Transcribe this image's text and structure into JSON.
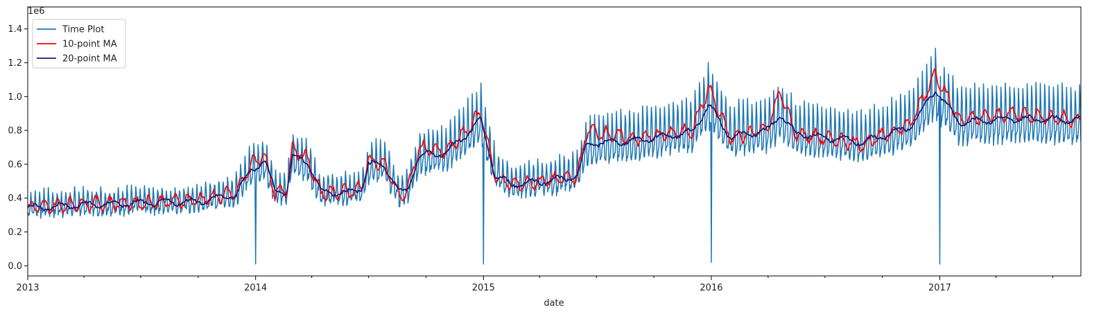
{
  "chart_data": {
    "type": "line",
    "title": "",
    "xlabel": "date",
    "ylabel": "",
    "y_offset_label": "1e6",
    "xlim": [
      "2013-01-01",
      "2017-08-15"
    ],
    "ylim": [
      -0.06,
      1.53
    ],
    "y_ticks": [
      0.0,
      0.2,
      0.4,
      0.6,
      0.8,
      1.0,
      1.2,
      1.4
    ],
    "x_ticks": [
      "2013",
      "2014",
      "2015",
      "2016",
      "2017"
    ],
    "grid": false,
    "legend_position": "top-left",
    "series": [
      {
        "name": "Time Plot",
        "color": "#1f77b4",
        "style": "daily sales with weekly spikes; near-zero dips on Jan 1 each year",
        "level": [
          [
            "2013-01-01",
            0.35
          ],
          [
            "2013-04-01",
            0.36
          ],
          [
            "2013-07-01",
            0.37
          ],
          [
            "2013-10-01",
            0.38
          ],
          [
            "2013-12-01",
            0.43
          ],
          [
            "2013-12-25",
            0.58
          ],
          [
            "2014-01-15",
            0.6
          ],
          [
            "2014-02-01",
            0.45
          ],
          [
            "2014-02-20",
            0.44
          ],
          [
            "2014-03-01",
            0.63
          ],
          [
            "2014-03-25",
            0.6
          ],
          [
            "2014-04-15",
            0.44
          ],
          [
            "2014-06-01",
            0.43
          ],
          [
            "2014-06-20",
            0.46
          ],
          [
            "2014-07-01",
            0.58
          ],
          [
            "2014-07-25",
            0.6
          ],
          [
            "2014-08-20",
            0.42
          ],
          [
            "2014-09-01",
            0.45
          ],
          [
            "2014-09-20",
            0.64
          ],
          [
            "2014-11-01",
            0.66
          ],
          [
            "2014-12-01",
            0.76
          ],
          [
            "2014-12-28",
            0.86
          ],
          [
            "2015-01-20",
            0.55
          ],
          [
            "2015-02-15",
            0.48
          ],
          [
            "2015-05-01",
            0.51
          ],
          [
            "2015-06-01",
            0.54
          ],
          [
            "2015-06-15",
            0.7
          ],
          [
            "2015-09-01",
            0.74
          ],
          [
            "2015-12-01",
            0.8
          ],
          [
            "2015-12-28",
            0.96
          ],
          [
            "2016-02-01",
            0.77
          ],
          [
            "2016-04-01",
            0.8
          ],
          [
            "2016-04-20",
            0.88
          ],
          [
            "2016-05-15",
            0.78
          ],
          [
            "2016-09-01",
            0.73
          ],
          [
            "2016-11-15",
            0.82
          ],
          [
            "2016-12-25",
            1.02
          ],
          [
            "2017-02-01",
            0.85
          ],
          [
            "2017-05-01",
            0.86
          ],
          [
            "2017-08-15",
            0.85
          ]
        ],
        "weekly_spike_amplitude": 0.35,
        "dips": [
          [
            "2014-01-01",
            0.01
          ],
          [
            "2015-01-01",
            0.01
          ],
          [
            "2016-01-01",
            0.02
          ],
          [
            "2017-01-01",
            0.01
          ]
        ]
      },
      {
        "name": "10-point MA",
        "color": "#ff0000",
        "level": [
          [
            "2013-01-01",
            0.34
          ],
          [
            "2013-04-01",
            0.37
          ],
          [
            "2013-07-01",
            0.37
          ],
          [
            "2013-10-01",
            0.39
          ],
          [
            "2013-12-01",
            0.43
          ],
          [
            "2013-12-25",
            0.6
          ],
          [
            "2014-01-15",
            0.66
          ],
          [
            "2014-02-01",
            0.42
          ],
          [
            "2014-02-20",
            0.45
          ],
          [
            "2014-03-01",
            0.7
          ],
          [
            "2014-03-25",
            0.63
          ],
          [
            "2014-04-15",
            0.43
          ],
          [
            "2014-06-01",
            0.44
          ],
          [
            "2014-06-20",
            0.46
          ],
          [
            "2014-07-01",
            0.62
          ],
          [
            "2014-07-25",
            0.61
          ],
          [
            "2014-08-20",
            0.41
          ],
          [
            "2014-09-01",
            0.44
          ],
          [
            "2014-09-20",
            0.7
          ],
          [
            "2014-11-01",
            0.67
          ],
          [
            "2014-12-01",
            0.78
          ],
          [
            "2014-12-28",
            0.91
          ],
          [
            "2015-01-20",
            0.52
          ],
          [
            "2015-02-15",
            0.48
          ],
          [
            "2015-05-01",
            0.51
          ],
          [
            "2015-06-01",
            0.53
          ],
          [
            "2015-06-15",
            0.8
          ],
          [
            "2015-09-01",
            0.75
          ],
          [
            "2015-12-01",
            0.8
          ],
          [
            "2015-12-28",
            1.05
          ],
          [
            "2016-02-01",
            0.75
          ],
          [
            "2016-04-01",
            0.82
          ],
          [
            "2016-04-20",
            1.03
          ],
          [
            "2016-05-15",
            0.78
          ],
          [
            "2016-09-01",
            0.72
          ],
          [
            "2016-11-15",
            0.84
          ],
          [
            "2016-12-25",
            1.14
          ],
          [
            "2017-02-01",
            0.86
          ],
          [
            "2017-05-01",
            0.9
          ],
          [
            "2017-08-15",
            0.86
          ]
        ]
      },
      {
        "name": "20-point MA",
        "color": "#191970",
        "level": [
          [
            "2013-01-01",
            0.34
          ],
          [
            "2013-04-01",
            0.36
          ],
          [
            "2013-07-01",
            0.37
          ],
          [
            "2013-10-01",
            0.38
          ],
          [
            "2013-12-01",
            0.42
          ],
          [
            "2013-12-25",
            0.57
          ],
          [
            "2014-01-15",
            0.62
          ],
          [
            "2014-02-01",
            0.45
          ],
          [
            "2014-02-20",
            0.44
          ],
          [
            "2014-03-01",
            0.64
          ],
          [
            "2014-03-25",
            0.62
          ],
          [
            "2014-04-15",
            0.44
          ],
          [
            "2014-06-01",
            0.43
          ],
          [
            "2014-06-20",
            0.46
          ],
          [
            "2014-07-01",
            0.6
          ],
          [
            "2014-07-25",
            0.6
          ],
          [
            "2014-08-20",
            0.43
          ],
          [
            "2014-09-01",
            0.45
          ],
          [
            "2014-09-20",
            0.65
          ],
          [
            "2014-11-01",
            0.67
          ],
          [
            "2014-12-01",
            0.76
          ],
          [
            "2014-12-28",
            0.86
          ],
          [
            "2015-01-20",
            0.53
          ],
          [
            "2015-02-15",
            0.48
          ],
          [
            "2015-05-01",
            0.51
          ],
          [
            "2015-06-01",
            0.53
          ],
          [
            "2015-06-15",
            0.72
          ],
          [
            "2015-09-01",
            0.74
          ],
          [
            "2015-12-01",
            0.79
          ],
          [
            "2015-12-28",
            0.95
          ],
          [
            "2016-02-01",
            0.76
          ],
          [
            "2016-04-01",
            0.8
          ],
          [
            "2016-04-20",
            0.9
          ],
          [
            "2016-05-15",
            0.78
          ],
          [
            "2016-09-01",
            0.73
          ],
          [
            "2016-11-15",
            0.82
          ],
          [
            "2016-12-25",
            1.04
          ],
          [
            "2017-02-01",
            0.85
          ],
          [
            "2017-05-01",
            0.87
          ],
          [
            "2017-08-15",
            0.86
          ]
        ]
      }
    ]
  }
}
